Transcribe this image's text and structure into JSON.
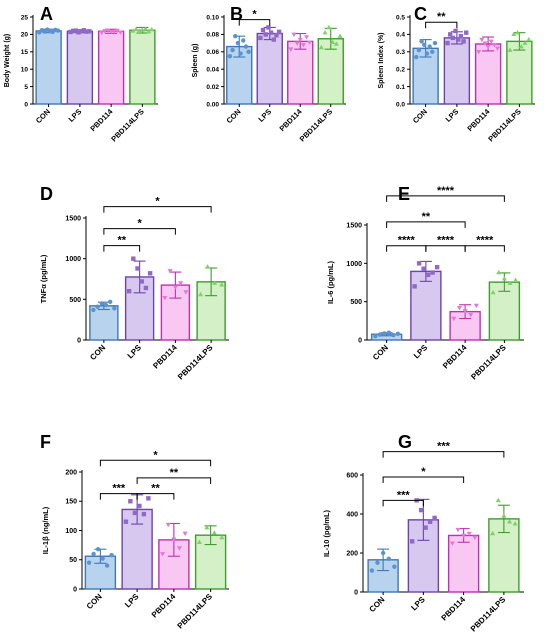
{
  "panel_groups": [
    "CON",
    "LPS",
    "PBD114",
    "PBD114LPS"
  ],
  "colors": {
    "CON": {
      "fill": "#b8d3ee",
      "stroke": "#3f78b5",
      "dot": "#5b93d1"
    },
    "LPS": {
      "fill": "#d6c8ee",
      "stroke": "#6d44a8",
      "dot": "#8f69c8"
    },
    "PBD114": {
      "fill": "#f8c8f2",
      "stroke": "#c22fb3",
      "dot": "#e07ad2"
    },
    "PBD114LPS": {
      "fill": "#d4f0c6",
      "stroke": "#3f9d2c",
      "dot": "#7fd06a"
    }
  },
  "chart_data": [
    {
      "panel": "A",
      "type": "bar",
      "ylabel": "Body Weight (g)",
      "categories": [
        "CON",
        "LPS",
        "PBD114",
        "PBD114LPS"
      ],
      "values": [
        21.0,
        20.9,
        20.9,
        21.2
      ],
      "errors": [
        0.5,
        0.4,
        0.6,
        0.8
      ],
      "ylim": [
        0,
        25
      ],
      "yticks": [
        "0",
        "5",
        "10",
        "15",
        "20",
        "25"
      ],
      "ytick_values": [
        0,
        5,
        10,
        15,
        20,
        25
      ],
      "points": [
        [
          20.6,
          21.2,
          20.8,
          21.4,
          21.0,
          20.7,
          21.3,
          21.1
        ],
        [
          20.7,
          21.0,
          21.1,
          20.6,
          20.9,
          21.2,
          20.8,
          20.9
        ],
        [
          20.5,
          21.0,
          21.2,
          20.8,
          20.9,
          21.1,
          20.6
        ],
        [
          21.0,
          21.5,
          20.9,
          21.3,
          21.6,
          20.8,
          21.4
        ]
      ],
      "markers": [
        "circle",
        "square",
        "triangle-down",
        "triangle-up"
      ],
      "significance": []
    },
    {
      "panel": "B",
      "type": "bar",
      "ylabel": "Spleen (g)",
      "categories": [
        "CON",
        "LPS",
        "PBD114",
        "PBD114LPS"
      ],
      "values": [
        0.066,
        0.081,
        0.072,
        0.075
      ],
      "errors": [
        0.012,
        0.007,
        0.009,
        0.012
      ],
      "ylim": [
        0,
        0.1
      ],
      "yticks": [
        "0.00",
        "0.02",
        "0.04",
        "0.06",
        "0.08",
        "0.10"
      ],
      "ytick_values": [
        0,
        0.02,
        0.04,
        0.06,
        0.08,
        0.1
      ],
      "points": [
        [
          0.055,
          0.062,
          0.078,
          0.07,
          0.058,
          0.073,
          0.066,
          0.06
        ],
        [
          0.076,
          0.085,
          0.08,
          0.088,
          0.082,
          0.074,
          0.079,
          0.083
        ],
        [
          0.063,
          0.08,
          0.07,
          0.074,
          0.068,
          0.077,
          0.071
        ],
        [
          0.065,
          0.082,
          0.088,
          0.071,
          0.069,
          0.078
        ]
      ],
      "markers": [
        "circle",
        "square",
        "triangle-down",
        "triangle-up"
      ],
      "significance": [
        {
          "from": 0,
          "to": 1,
          "label": "*"
        }
      ]
    },
    {
      "panel": "C",
      "type": "bar",
      "ylabel": "Spleen Index (%)",
      "categories": [
        "CON",
        "LPS",
        "PBD114",
        "PBD114LPS"
      ],
      "values": [
        0.32,
        0.38,
        0.345,
        0.36
      ],
      "errors": [
        0.05,
        0.035,
        0.04,
        0.05
      ],
      "ylim": [
        0,
        0.5
      ],
      "yticks": [
        "0.0",
        "0.1",
        "0.2",
        "0.3",
        "0.4",
        "0.5"
      ],
      "ytick_values": [
        0,
        0.1,
        0.2,
        0.3,
        0.4,
        0.5
      ],
      "points": [
        [
          0.27,
          0.31,
          0.36,
          0.34,
          0.29,
          0.33,
          0.3,
          0.35
        ],
        [
          0.35,
          0.4,
          0.38,
          0.42,
          0.37,
          0.39,
          0.36,
          0.41
        ],
        [
          0.3,
          0.37,
          0.35,
          0.33,
          0.36,
          0.34,
          0.32
        ],
        [
          0.31,
          0.4,
          0.41,
          0.33,
          0.35,
          0.37
        ]
      ],
      "markers": [
        "circle",
        "square",
        "triangle-down",
        "triangle-up"
      ],
      "significance": [
        {
          "from": 0,
          "to": 1,
          "label": "**"
        }
      ]
    },
    {
      "panel": "D",
      "type": "bar",
      "ylabel": "TNFα (pg/mL)",
      "categories": [
        "CON",
        "LPS",
        "PBD114",
        "PBD114LPS"
      ],
      "values": [
        420,
        775,
        675,
        715
      ],
      "errors": [
        45,
        195,
        160,
        170
      ],
      "ylim": [
        0,
        1500
      ],
      "yticks": [
        "0",
        "500",
        "1000",
        "1500"
      ],
      "ytick_values": [
        0,
        500,
        1000,
        1500
      ],
      "points": [
        [
          370,
          410,
          450,
          430,
          470,
          390
        ],
        [
          600,
          1000,
          880,
          720,
          640,
          820
        ],
        [
          520,
          850,
          650,
          700,
          590
        ],
        [
          560,
          900,
          700,
          680
        ]
      ],
      "markers": [
        "circle",
        "square",
        "triangle-down",
        "triangle-up"
      ],
      "significance": [
        {
          "from": 0,
          "to": 1,
          "label": "**"
        },
        {
          "from": 0,
          "to": 2,
          "label": "*"
        },
        {
          "from": 0,
          "to": 3,
          "label": "*"
        }
      ]
    },
    {
      "panel": "E",
      "type": "bar",
      "ylabel": "IL-6 (pg/mL)",
      "categories": [
        "CON",
        "LPS",
        "PBD114",
        "PBD114LPS"
      ],
      "values": [
        75,
        895,
        370,
        755
      ],
      "errors": [
        20,
        130,
        90,
        120
      ],
      "ylim": [
        0,
        1500
      ],
      "yticks": [
        "0",
        "500",
        "1000",
        "1500"
      ],
      "ytick_values": [
        0,
        500,
        1000,
        1500
      ],
      "points": [
        [
          50,
          70,
          85,
          95,
          65,
          80
        ],
        [
          700,
          1000,
          930,
          850,
          880,
          950
        ],
        [
          280,
          420,
          380,
          330,
          450
        ],
        [
          620,
          880,
          800,
          740,
          780
        ]
      ],
      "markers": [
        "circle",
        "square",
        "triangle-down",
        "triangle-up"
      ],
      "significance": [
        {
          "from": 0,
          "to": 1,
          "label": "****"
        },
        {
          "from": 0,
          "to": 2,
          "label": "**"
        },
        {
          "from": 0,
          "to": 3,
          "label": "****"
        },
        {
          "from": 1,
          "to": 2,
          "label": "****"
        },
        {
          "from": 2,
          "to": 3,
          "label": "****"
        }
      ]
    },
    {
      "panel": "F",
      "type": "bar",
      "ylabel": "IL-1β (ng/mL)",
      "categories": [
        "CON",
        "LPS",
        "PBD114",
        "PBD114LPS"
      ],
      "values": [
        56,
        136,
        84,
        92
      ],
      "errors": [
        12,
        25,
        28,
        16
      ],
      "ylim": [
        0,
        200
      ],
      "yticks": [
        "0",
        "50",
        "100",
        "150",
        "200"
      ],
      "ytick_values": [
        0,
        50,
        100,
        150,
        200
      ],
      "points": [
        [
          45,
          60,
          68,
          52,
          40,
          58
        ],
        [
          115,
          150,
          130,
          142,
          128,
          155
        ],
        [
          60,
          110,
          85,
          70,
          95
        ],
        [
          80,
          105,
          96,
          88
        ]
      ],
      "markers": [
        "circle",
        "square",
        "triangle-down",
        "triangle-up"
      ],
      "significance": [
        {
          "from": 0,
          "to": 1,
          "label": "***"
        },
        {
          "from": 1,
          "to": 2,
          "label": "**"
        },
        {
          "from": 1,
          "to": 3,
          "label": "**"
        },
        {
          "from": 0,
          "to": 3,
          "label": "*"
        }
      ]
    },
    {
      "panel": "G",
      "type": "bar",
      "ylabel": "IL-10 (pg/mL)",
      "categories": [
        "CON",
        "LPS",
        "PBD114",
        "PBD114LPS"
      ],
      "values": [
        165,
        370,
        290,
        375
      ],
      "errors": [
        55,
        105,
        35,
        70
      ],
      "ylim": [
        0,
        600
      ],
      "yticks": [
        "0",
        "200",
        "400",
        "600"
      ],
      "ytick_values": [
        0,
        200,
        400,
        600
      ],
      "points": [
        [
          110,
          150,
          200,
          170,
          130
        ],
        [
          260,
          470,
          420,
          330,
          360,
          380
        ],
        [
          250,
          320,
          290,
          300,
          280
        ],
        [
          300,
          470,
          390,
          360,
          350
        ]
      ],
      "markers": [
        "circle",
        "square",
        "triangle-down",
        "triangle-up"
      ],
      "significance": [
        {
          "from": 0,
          "to": 1,
          "label": "***"
        },
        {
          "from": 0,
          "to": 2,
          "label": "*"
        },
        {
          "from": 0,
          "to": 3,
          "label": "***"
        }
      ]
    }
  ]
}
